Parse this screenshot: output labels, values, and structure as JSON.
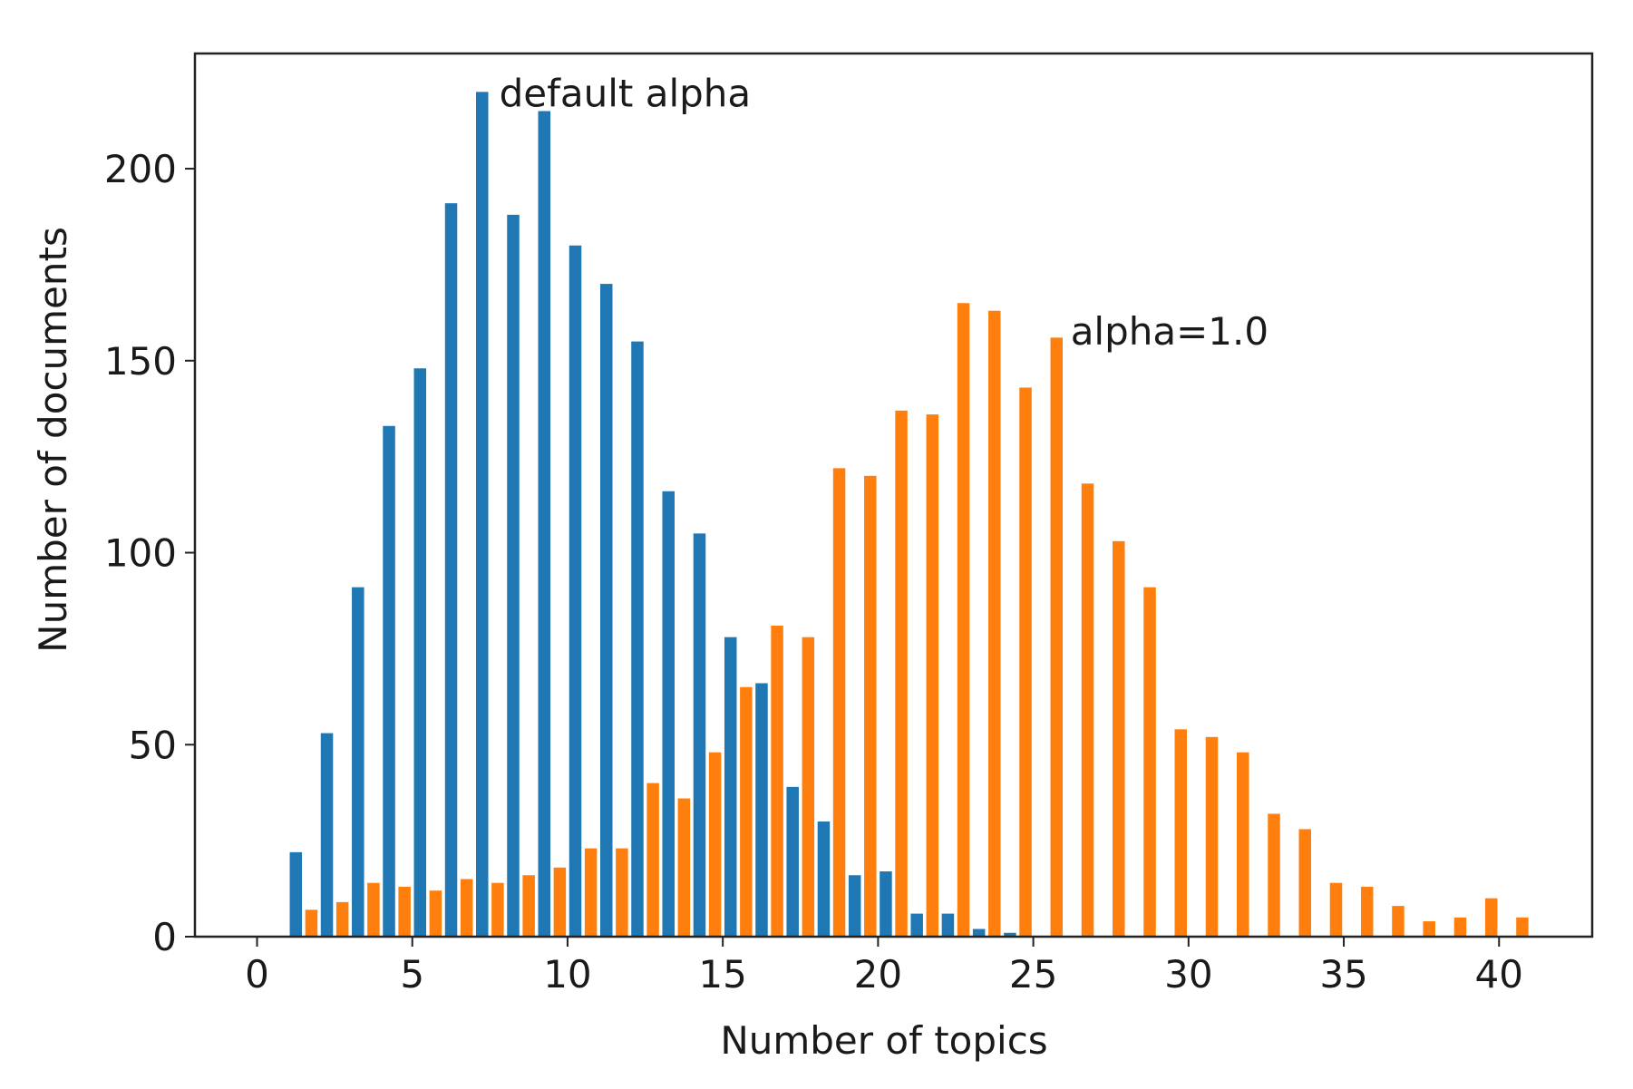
{
  "chart_data": {
    "type": "bar",
    "title": "",
    "xlabel": "Number of topics",
    "ylabel": "Number of documents",
    "xlim": [
      -2,
      43
    ],
    "ylim": [
      0,
      230
    ],
    "xticks": [
      "0",
      "5",
      "10",
      "15",
      "20",
      "25",
      "30",
      "35",
      "40"
    ],
    "yticks": [
      "0",
      "50",
      "100",
      "150",
      "200"
    ],
    "grid": false,
    "legend": "none",
    "annotations": [
      {
        "text": "default alpha",
        "x": 7.8,
        "y": 220
      },
      {
        "text": "alpha=1.0",
        "x": 26.2,
        "y": 158
      }
    ],
    "series": [
      {
        "color": "#1f77b4",
        "x": [
          1,
          2,
          3,
          4,
          5,
          6,
          7,
          8,
          9,
          10,
          11,
          12,
          13,
          14,
          15,
          16,
          17,
          18,
          19,
          20,
          21,
          22,
          23,
          24
        ],
        "values": [
          22,
          53,
          91,
          133,
          148,
          191,
          220,
          188,
          215,
          180,
          170,
          155,
          116,
          105,
          78,
          66,
          39,
          30,
          16,
          17,
          6,
          6,
          2,
          1
        ]
      },
      {
        "color": "#ff7f0e",
        "x": [
          1,
          2,
          3,
          4,
          5,
          6,
          7,
          8,
          9,
          10,
          11,
          12,
          13,
          14,
          15,
          16,
          17,
          18,
          19,
          20,
          21,
          22,
          23,
          24,
          25,
          26,
          27,
          28,
          29,
          30,
          31,
          32,
          33,
          34,
          35,
          36,
          37,
          38,
          39,
          40
        ],
        "values": [
          7,
          9,
          14,
          13,
          12,
          15,
          14,
          16,
          18,
          23,
          23,
          40,
          36,
          48,
          65,
          81,
          78,
          122,
          120,
          137,
          136,
          165,
          163,
          143,
          156,
          118,
          103,
          91,
          54,
          52,
          48,
          32,
          28,
          14,
          13,
          8,
          4,
          5,
          10,
          5
        ]
      }
    ]
  }
}
